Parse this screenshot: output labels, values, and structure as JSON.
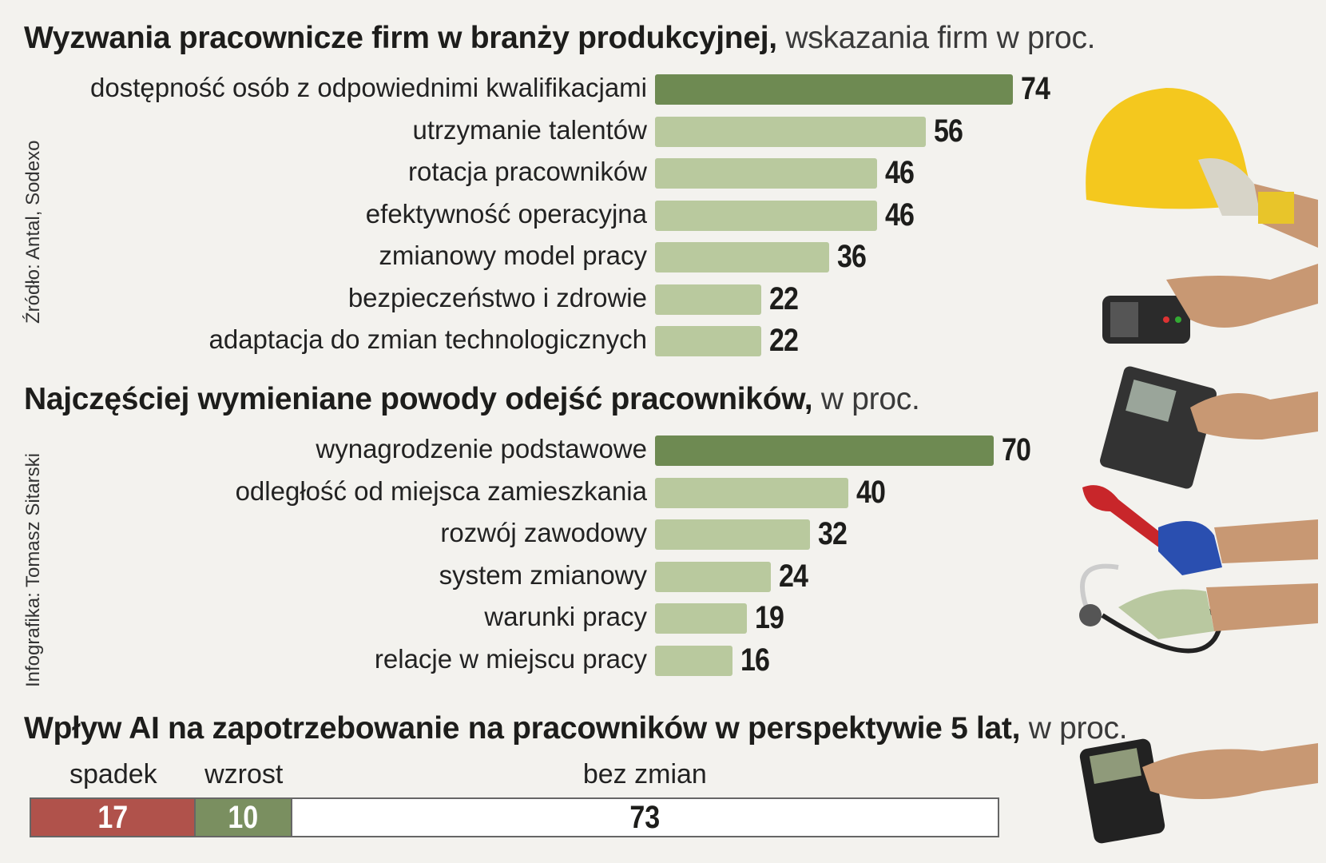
{
  "chart_data": [
    {
      "type": "bar",
      "orientation": "horizontal",
      "title": "Wyzwania pracownicze firm w branży produkcyjnej,",
      "subtitle": "wskazania firm w proc.",
      "categories": [
        "dostępność osób z odpowiednimi kwalifikacjami",
        "utrzymanie talentów",
        "rotacja pracowników",
        "efektywność operacyjna",
        "zmianowy model pracy",
        "bezpieczeństwo i zdrowie",
        "adaptacja do zmian technologicznych"
      ],
      "values": [
        74,
        56,
        46,
        46,
        36,
        22,
        22
      ],
      "highlight_index": 0
    },
    {
      "type": "bar",
      "orientation": "horizontal",
      "title": "Najczęściej wymieniane powody odejść pracowników,",
      "subtitle": "w proc.",
      "categories": [
        "wynagrodzenie podstawowe",
        "odległość od miejsca zamieszkania",
        "rozwój zawodowy",
        "system zmianowy",
        "warunki pracy",
        "relacje w miejscu pracy"
      ],
      "values": [
        70,
        40,
        32,
        24,
        19,
        16
      ],
      "highlight_index": 0
    },
    {
      "type": "bar",
      "orientation": "horizontal",
      "stacked": true,
      "title": "Wpływ AI na zapotrzebowanie na pracowników w perspektywie 5 lat,",
      "subtitle": "w proc.",
      "categories": [
        "spadek",
        "wzrost",
        "bez zmian"
      ],
      "values": [
        17,
        10,
        73
      ],
      "colors": [
        "#b0524b",
        "#7a8f60",
        "#ffffff"
      ]
    }
  ],
  "source_note": "Źródło: Antal, Sodexo",
  "credit_note": "Infografika: Tomasz Sitarski",
  "colors": {
    "bar_highlight": "#6e8a52",
    "bar_normal": "#b9c99e",
    "background": "#f3f2ee"
  },
  "illustration_icons": [
    "hard-hat-icon",
    "handheld-terminal-icon",
    "calculator-icon",
    "pipe-wrench-icon",
    "stethoscope-icon",
    "multimeter-icon"
  ]
}
